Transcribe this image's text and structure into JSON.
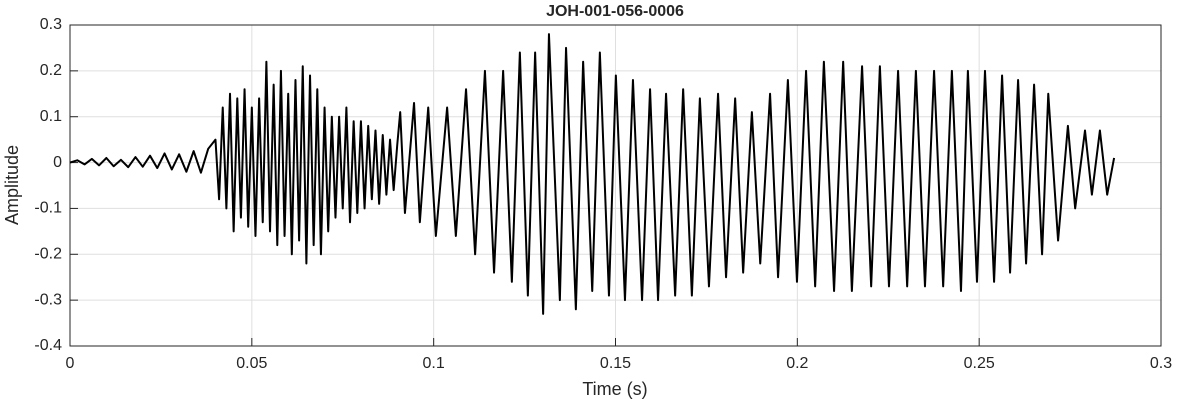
{
  "chart_data": {
    "type": "line",
    "title": "JOH-001-056-0006",
    "x_label": "Time (s)",
    "y_label": "Amplitude",
    "color": "#000000",
    "grid": true,
    "xlim": [
      0,
      0.3
    ],
    "xticks": [
      0,
      0.05,
      0.1,
      0.15,
      0.2,
      0.25,
      0.3
    ],
    "ylim": [
      -0.4,
      0.3
    ],
    "yticks": [
      -0.4,
      -0.3,
      -0.2,
      -0.1,
      0,
      0.1,
      0.2,
      0.3
    ],
    "x": [
      0,
      0.002,
      0.004,
      0.006,
      0.008,
      0.01,
      0.012,
      0.014,
      0.016,
      0.018,
      0.02,
      0.022,
      0.024,
      0.026,
      0.028,
      0.03,
      0.032,
      0.034,
      0.036,
      0.038,
      0.04,
      0.041,
      0.042,
      0.043,
      0.044,
      0.045,
      0.046,
      0.047,
      0.048,
      0.049,
      0.05,
      0.051,
      0.052,
      0.053,
      0.054,
      0.055,
      0.056,
      0.057,
      0.058,
      0.059,
      0.06,
      0.061,
      0.062,
      0.063,
      0.064,
      0.065,
      0.066,
      0.067,
      0.068,
      0.069,
      0.07,
      0.071,
      0.072,
      0.073,
      0.074,
      0.075,
      0.076,
      0.077,
      0.078,
      0.079,
      0.08,
      0.081,
      0.082,
      0.083,
      0.084,
      0.085,
      0.086,
      0.087,
      0.088,
      0.089,
      0.09,
      0.0908,
      0.0921,
      0.0946,
      0.0962,
      0.0985,
      0.1006,
      0.1037,
      0.1061,
      0.1089,
      0.1114,
      0.1141,
      0.1166,
      0.1191,
      0.1215,
      0.1237,
      0.1259,
      0.1279,
      0.1301,
      0.1317,
      0.1347,
      0.1364,
      0.1391,
      0.1411,
      0.1436,
      0.1457,
      0.1482,
      0.1501,
      0.1526,
      0.1548,
      0.1573,
      0.1595,
      0.1617,
      0.1639,
      0.1664,
      0.1686,
      0.171,
      0.1732,
      0.1757,
      0.1782,
      0.1804,
      0.1829,
      0.1851,
      0.1875,
      0.1898,
      0.1925,
      0.1947,
      0.1974,
      0.1999,
      0.2024,
      0.2049,
      0.2073,
      0.2101,
      0.2126,
      0.215,
      0.2178,
      0.2203,
      0.2227,
      0.2252,
      0.2277,
      0.2302,
      0.2326,
      0.2351,
      0.2376,
      0.2401,
      0.2425,
      0.245,
      0.2469,
      0.2494,
      0.2516,
      0.2541,
      0.2563,
      0.2585,
      0.2607,
      0.2629,
      0.2651,
      0.2673,
      0.269,
      0.2717,
      0.2744,
      0.2764,
      0.2791,
      0.281,
      0.2832,
      0.2852,
      0.2871
    ],
    "values": [
      0,
      0.005,
      -0.004,
      0.008,
      -0.006,
      0.01,
      -0.008,
      0.006,
      -0.01,
      0.012,
      -0.009,
      0.015,
      -0.012,
      0.02,
      -0.015,
      0.018,
      -0.02,
      0.025,
      -0.022,
      0.03,
      0.05,
      -0.08,
      0.12,
      -0.1,
      0.15,
      -0.15,
      0.14,
      -0.12,
      0.16,
      -0.14,
      0.12,
      -0.16,
      0.14,
      -0.13,
      0.22,
      -0.15,
      0.17,
      -0.18,
      0.2,
      -0.16,
      0.15,
      -0.2,
      0.18,
      -0.17,
      0.21,
      -0.22,
      0.19,
      -0.18,
      0.16,
      -0.2,
      0.12,
      -0.15,
      0.1,
      -0.12,
      0.1,
      -0.1,
      0.12,
      -0.13,
      0.09,
      -0.11,
      0.09,
      -0.1,
      0.08,
      -0.08,
      0.07,
      -0.09,
      0.06,
      -0.07,
      0.05,
      -0.06,
      0.04,
      0.11,
      -0.11,
      0.13,
      -0.13,
      0.12,
      -0.16,
      0.12,
      -0.16,
      0.16,
      -0.2,
      0.2,
      -0.24,
      0.2,
      -0.26,
      0.24,
      -0.29,
      0.24,
      -0.33,
      0.28,
      -0.3,
      0.25,
      -0.32,
      0.22,
      -0.28,
      0.24,
      -0.29,
      0.19,
      -0.3,
      0.18,
      -0.3,
      0.16,
      -0.3,
      0.15,
      -0.29,
      0.16,
      -0.29,
      0.14,
      -0.27,
      0.15,
      -0.25,
      0.14,
      -0.24,
      0.11,
      -0.22,
      0.15,
      -0.25,
      0.18,
      -0.26,
      0.2,
      -0.27,
      0.22,
      -0.28,
      0.22,
      -0.28,
      0.21,
      -0.27,
      0.21,
      -0.27,
      0.2,
      -0.27,
      0.2,
      -0.27,
      0.2,
      -0.27,
      0.2,
      -0.28,
      0.2,
      -0.26,
      0.2,
      -0.26,
      0.19,
      -0.24,
      0.18,
      -0.22,
      0.17,
      -0.2,
      0.15,
      -0.17,
      0.08,
      -0.1,
      0.07,
      -0.07,
      0.07,
      -0.07,
      0.01
    ]
  }
}
